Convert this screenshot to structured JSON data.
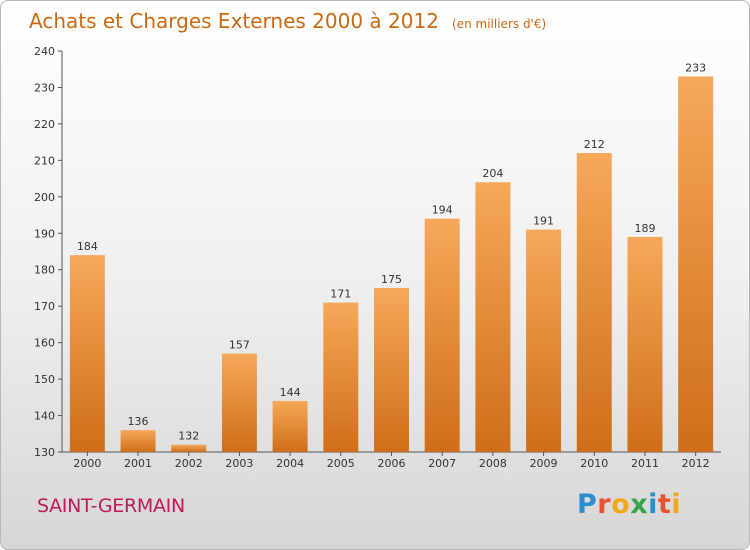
{
  "header": {
    "title": "Achats et Charges Externes 2000 à 2012",
    "subtitle": "(en milliers d'€)"
  },
  "commune": "SAINT-GERMAIN",
  "logo": {
    "letters": [
      "P",
      "r",
      "o",
      "x",
      "i",
      "t",
      "i"
    ],
    "colors": [
      "#2a8fcf",
      "#e8522f",
      "#f2a81d",
      "#3aa44a",
      "#2a8fcf",
      "#e8522f",
      "#f2a81d"
    ]
  },
  "colors": {
    "bar_top": "#f6a85a",
    "bar_bottom": "#cf6e18",
    "title": "#c96a12",
    "commune": "#c0185a"
  },
  "chart_data": {
    "type": "bar",
    "title": "Achats et Charges Externes 2000 à 2012",
    "subtitle": "(en milliers d'€)",
    "categories": [
      "2000",
      "2001",
      "2002",
      "2003",
      "2004",
      "2005",
      "2006",
      "2007",
      "2008",
      "2009",
      "2010",
      "2011",
      "2012"
    ],
    "values": [
      184,
      136,
      132,
      157,
      144,
      171,
      175,
      194,
      204,
      191,
      212,
      189,
      233
    ],
    "ylim": [
      130,
      240
    ],
    "yticks": [
      130,
      140,
      150,
      160,
      170,
      180,
      190,
      200,
      210,
      220,
      230,
      240
    ],
    "grid": false,
    "legend": "none"
  }
}
